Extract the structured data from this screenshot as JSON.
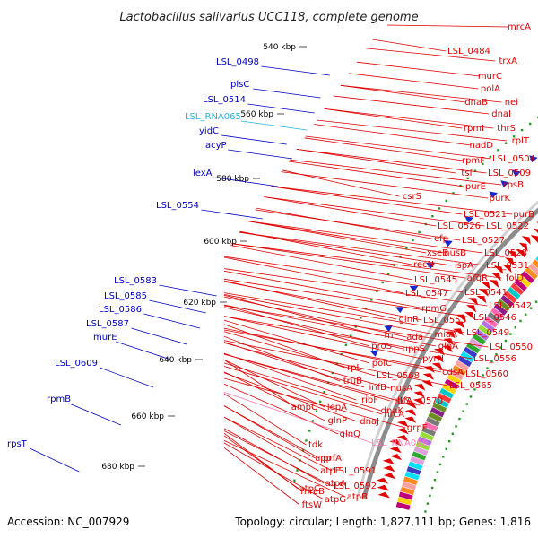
{
  "title": "Lactobacillus salivarius UCC118, complete genome",
  "footer": {
    "accession": "Accession: NC_007929",
    "summary": "Topology: circular; Length: 1,827,111 bp; Genes: 1,816"
  },
  "colors": {
    "forward_label": "#e00000",
    "reverse_label": "#0000c8",
    "rna_label": "#ff7ab8",
    "rna2_label": "#22b6e6",
    "backbone": "#8c8c8c",
    "dot": "#1e9b1e"
  },
  "kbp_ticks": [
    "540 kbp",
    "560 kbp",
    "580 kbp",
    "600 kbp",
    "620 kbp",
    "640 kbp",
    "660 kbp",
    "680 kbp"
  ],
  "right_labels": [
    "mrcA",
    "LSL_0484",
    "trxA",
    "murC",
    "polA",
    "nei",
    "dnaB",
    "dnaI",
    "rpmI",
    "thrS",
    "rplT",
    "nadD",
    "LSL_0504",
    "rpmF",
    "LSL_0509",
    "tsf",
    "rpsB",
    "purE",
    "purK",
    "csrS",
    "LSL_0521",
    "purB",
    "LSL_0526",
    "LSL_0522",
    "efp",
    "LSL_0527",
    "xseB",
    "nusB",
    "LSL_0528",
    "recN",
    "ispA",
    "LSL_0531",
    "argR",
    "folD",
    "LSL_0545",
    "LSL_0541",
    "LSL_0547",
    "rpmG",
    "LSL_0542",
    "glnR",
    "LSL_0546",
    "LSL_0553",
    "miaA",
    "LSL_0549",
    "frr",
    "ada",
    "glnA",
    "uppS",
    "LSL_0550",
    "proS",
    "pyrH",
    "LSL_0556",
    "rpL",
    "polC",
    "cdsA",
    "LSL_0560",
    "LSL_0568",
    "truB",
    "nusA",
    "LSL_0565",
    "infB",
    "rbfA",
    "ribF",
    "LSL_0570",
    "hrcA",
    "dnaK",
    "ampC",
    "lepA",
    "grpE",
    "glnP",
    "dnaJ",
    "glnQ",
    "LSL_RNA066",
    "tdk",
    "upp",
    "prfA",
    "atpE",
    "LSL_0591",
    "atpA",
    "LSL_0592",
    "atpC",
    "atpB",
    "atpG",
    "mreB",
    "ftsW"
  ],
  "left_labels": [
    "LSL_0498",
    "plsC",
    "LSL_0514",
    "LSL_RNA065",
    "yidC",
    "acyP",
    "lexA",
    "LSL_0554",
    "LSL_0583",
    "LSL_0585",
    "LSL_0586",
    "LSL_0587",
    "murE",
    "LSL_0609",
    "rpmB",
    "rpsT"
  ]
}
